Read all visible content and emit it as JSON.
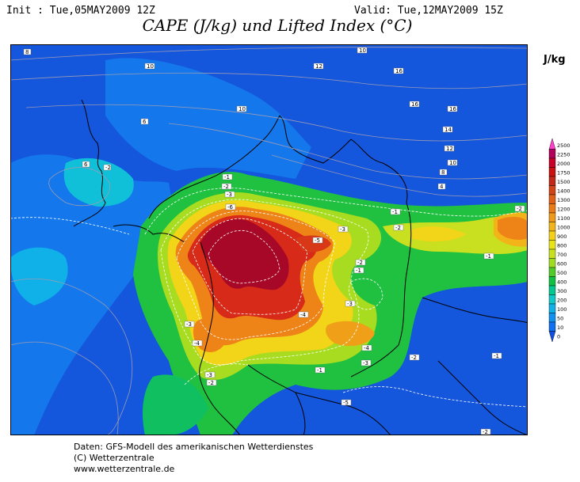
{
  "header": {
    "init": "Init : Tue,05MAY2009 12Z",
    "valid": "Valid: Tue,12MAY2009 15Z",
    "title": "CAPE (J/kg) und Lifted Index (°C)"
  },
  "legend": {
    "unit": "J/kg",
    "levels": [
      "2500",
      "2250",
      "2000",
      "1750",
      "1500",
      "1400",
      "1300",
      "1200",
      "1100",
      "1000",
      "900",
      "800",
      "700",
      "600",
      "500",
      "400",
      "300",
      "200",
      "100",
      "50",
      "10",
      "0"
    ],
    "colors": [
      "#ff40c8",
      "#b0005a",
      "#c80028",
      "#cc1010",
      "#c22818",
      "#d24418",
      "#e06018",
      "#ea7a18",
      "#f09818",
      "#f2b418",
      "#f4d018",
      "#e8e418",
      "#c8e020",
      "#a0dc20",
      "#50cc28",
      "#10c040",
      "#00c890",
      "#10c8c8",
      "#10b0e8",
      "#1090f0",
      "#1070f0",
      "#1050e0"
    ]
  },
  "map_labels": {
    "isobars": [
      "10",
      "12",
      "16",
      "16",
      "16",
      "14",
      "12",
      "10",
      "10",
      "8",
      "6",
      "6",
      "4",
      "2"
    ],
    "lifted_index": [
      "-1",
      "-2",
      "-3",
      "-4",
      "-5",
      "-6",
      "-2",
      "-3",
      "-1",
      "-2",
      "-1",
      "-3",
      "-4",
      "-3",
      "-1",
      "-2",
      "-1",
      "-3",
      "-5",
      "-4",
      "-3",
      "-2",
      "-1"
    ]
  },
  "footer": {
    "line1": "Daten: GFS-Modell des amerikanischen Wetterdienstes",
    "line2": "(C) Wetterzentrale",
    "line3": "www.wetterzentrale.de"
  }
}
